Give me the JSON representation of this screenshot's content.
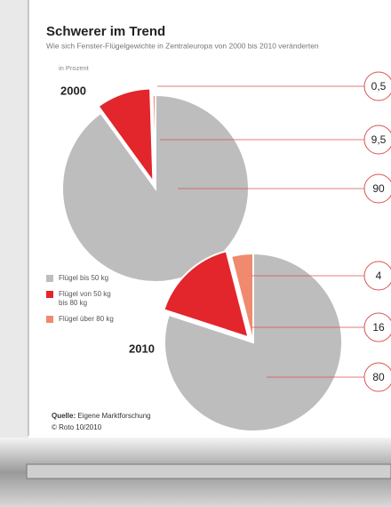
{
  "header": {
    "title": "Schwerer im Trend",
    "subtitle": "Wie sich Fenster-Flügelgewichte in Zentraleuropa von 2000 bis 2010 veränderten",
    "unit": "in Prozent"
  },
  "chart_data": [
    {
      "type": "pie",
      "title": "2000",
      "categories": [
        "Flügel bis 50 kg",
        "Flügel von 50 kg bis 80 kg",
        "Flügel über 80 kg"
      ],
      "values": [
        90,
        9.5,
        0.5
      ],
      "value_labels": [
        "90",
        "9,5",
        "0,5"
      ],
      "colors": [
        "#bdbdbd",
        "#e2262c",
        "#f08a6e"
      ],
      "exploded": 1
    },
    {
      "type": "pie",
      "title": "2010",
      "categories": [
        "Flügel bis 50 kg",
        "Flügel von 50 kg bis 80 kg",
        "Flügel über 80 kg"
      ],
      "values": [
        80,
        16,
        4
      ],
      "value_labels": [
        "80",
        "16",
        "4"
      ],
      "colors": [
        "#bdbdbd",
        "#e2262c",
        "#f08a6e"
      ],
      "exploded": 1
    }
  ],
  "source": {
    "label": "Quelle:",
    "text": "Eigene Marktforschung",
    "copyright": "© Roto 10/2010"
  }
}
